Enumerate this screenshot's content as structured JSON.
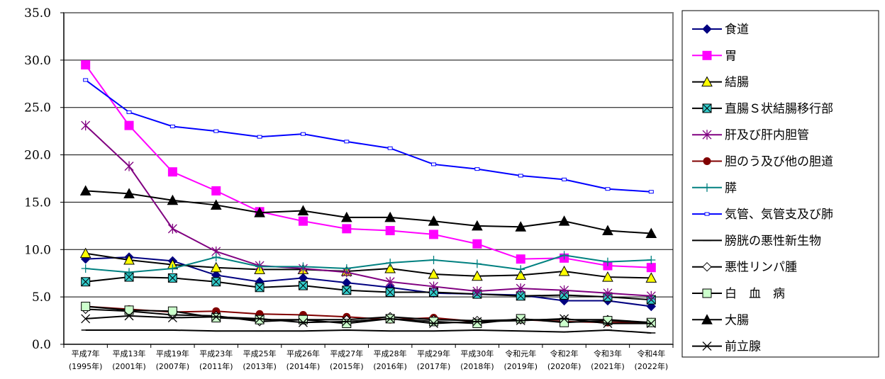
{
  "chart_data": {
    "type": "line",
    "title": "",
    "xlabel": "",
    "ylabel": "",
    "ylim": [
      0,
      35
    ],
    "yticks": [
      "0.0",
      "5.0",
      "10.0",
      "15.0",
      "20.0",
      "25.0",
      "30.0",
      "35.0"
    ],
    "grid": "horizontal",
    "legend_position": "right",
    "categories": [
      [
        "平成7年",
        "(1995年)"
      ],
      [
        "平成13年",
        "(2001年)"
      ],
      [
        "平成19年",
        "(2007年)"
      ],
      [
        "平成23年",
        "(2011年)"
      ],
      [
        "平成25年",
        "(2013年)"
      ],
      [
        "平成26年",
        "(2014年)"
      ],
      [
        "平成27年",
        "(2015年)"
      ],
      [
        "平成28年",
        "(2016年)"
      ],
      [
        "平成29年",
        "(2017年)"
      ],
      [
        "平成30年",
        "(2018年)"
      ],
      [
        "令和元年",
        "(2019年)"
      ],
      [
        "令和2年",
        "(2020年)"
      ],
      [
        "令和3年",
        "(2021年)"
      ],
      [
        "令和4年",
        "(2022年)"
      ]
    ],
    "series": [
      {
        "name": "食道",
        "color": "#000080",
        "marker": "diamond-filled",
        "values": [
          9.0,
          9.2,
          8.8,
          7.3,
          6.6,
          7.0,
          6.5,
          6.0,
          5.4,
          5.3,
          5.2,
          4.6,
          4.6,
          4.0
        ]
      },
      {
        "name": "胃",
        "color": "#FF00FF",
        "marker": "square-filled",
        "values": [
          29.5,
          23.1,
          18.2,
          16.2,
          14.0,
          13.0,
          12.2,
          12.0,
          11.6,
          10.6,
          9.0,
          9.1,
          8.3,
          8.1
        ]
      },
      {
        "name": "結腸",
        "color": "#000000",
        "marker": "triangle-yellow",
        "values": [
          9.6,
          8.9,
          8.4,
          8.1,
          7.9,
          7.9,
          7.7,
          8.0,
          7.4,
          7.2,
          7.3,
          7.7,
          7.1,
          7.0
        ]
      },
      {
        "name": "直腸Ｓ状結腸移行部",
        "color": "#000000",
        "marker": "square-teal-x",
        "values": [
          6.6,
          7.1,
          7.0,
          6.6,
          6.0,
          6.2,
          5.7,
          5.5,
          5.5,
          5.3,
          5.1,
          5.2,
          5.0,
          4.7
        ]
      },
      {
        "name": "肝及び肝内胆管",
        "color": "#800080",
        "marker": "asterisk",
        "values": [
          23.1,
          18.8,
          12.2,
          9.8,
          8.3,
          8.0,
          7.6,
          6.6,
          6.1,
          5.6,
          5.9,
          5.7,
          5.4,
          5.1
        ]
      },
      {
        "name": "胆のう及び他の胆道",
        "color": "#800000",
        "marker": "circle-filled",
        "values": [
          4.0,
          3.7,
          3.4,
          3.5,
          3.2,
          3.1,
          2.9,
          2.6,
          2.8,
          2.4,
          2.6,
          2.4,
          2.3,
          2.3
        ]
      },
      {
        "name": "膵",
        "color": "#008080",
        "marker": "plus",
        "values": [
          8.0,
          7.6,
          8.0,
          9.2,
          8.2,
          8.2,
          8.0,
          8.6,
          8.9,
          8.5,
          7.9,
          9.4,
          8.7,
          8.9
        ]
      },
      {
        "name": "気管、気管支及び肺",
        "color": "#0000FF",
        "marker": "small-square-hollow",
        "values": [
          27.9,
          24.5,
          23.0,
          22.5,
          21.9,
          22.2,
          21.4,
          20.7,
          19.0,
          18.5,
          17.8,
          17.4,
          16.4,
          16.1
        ]
      },
      {
        "name": "膀胱の悪性新生物",
        "color": "#000000",
        "marker": "dash",
        "values": [
          1.5,
          1.5,
          1.5,
          1.4,
          1.4,
          1.4,
          1.5,
          1.4,
          1.4,
          1.5,
          1.4,
          1.3,
          1.5,
          1.2
        ]
      },
      {
        "name": "悪性リンパ腫",
        "color": "#000000",
        "marker": "diamond-hollow",
        "values": [
          3.7,
          3.5,
          3.1,
          3.0,
          2.4,
          2.6,
          2.6,
          2.9,
          2.6,
          2.5,
          2.6,
          2.6,
          2.6,
          2.3
        ]
      },
      {
        "name": "白　血　病",
        "color": "#000000",
        "marker": "square-lightgreen",
        "values": [
          4.0,
          3.6,
          3.5,
          2.8,
          2.6,
          2.6,
          2.2,
          2.7,
          2.4,
          2.2,
          2.7,
          2.3,
          2.5,
          2.3
        ]
      },
      {
        "name": "大腸",
        "color": "#000000",
        "marker": "triangle-black",
        "values": [
          16.2,
          15.9,
          15.2,
          14.7,
          13.9,
          14.1,
          13.4,
          13.4,
          13.0,
          12.5,
          12.4,
          13.0,
          12.0,
          11.7
        ]
      },
      {
        "name": "前立腺",
        "color": "#000000",
        "marker": "x",
        "values": [
          2.7,
          3.0,
          2.8,
          2.9,
          2.7,
          2.3,
          2.4,
          2.7,
          2.2,
          2.4,
          2.5,
          2.7,
          2.2,
          2.2
        ]
      }
    ]
  }
}
